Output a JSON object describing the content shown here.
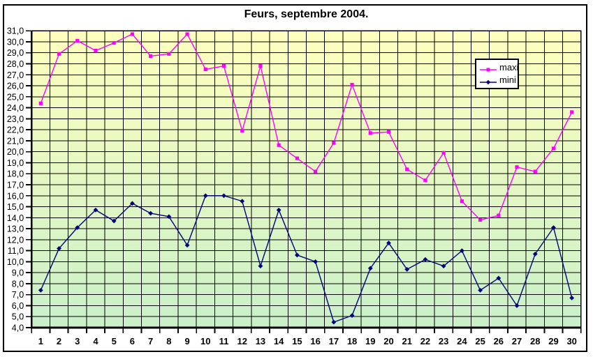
{
  "chart_data": {
    "type": "line",
    "title": "Feurs, septembre 2004.",
    "xlabel": "",
    "ylabel": "",
    "ylim": [
      4,
      31
    ],
    "y_tick_step": 1,
    "grid": true,
    "legend_position": "inside-top-right",
    "plot_background": {
      "top_color": "#FFFFBE",
      "bottom_color": "#C9F0C9"
    },
    "grid_color": "#000000",
    "categories": [
      "1",
      "2",
      "3",
      "4",
      "5",
      "6",
      "7",
      "8",
      "9",
      "10",
      "11",
      "12",
      "13",
      "14",
      "15",
      "16",
      "17",
      "18",
      "19",
      "20",
      "21",
      "22",
      "23",
      "24",
      "25",
      "26",
      "27",
      "28",
      "29",
      "30"
    ],
    "y_tick_labels": [
      "31,0",
      "30,0",
      "29,0",
      "28,0",
      "27,0",
      "26,0",
      "25,0",
      "24,0",
      "23,0",
      "22,0",
      "21,0",
      "20,0",
      "19,0",
      "18,0",
      "17,0",
      "16,0",
      "15,0",
      "14,0",
      "13,0",
      "12,0",
      "11,0",
      "10,0",
      "9,0",
      "8,0",
      "7,0",
      "6,0",
      "5,0",
      "4,0"
    ],
    "series": [
      {
        "name": "maxi",
        "color": "#FF00FF",
        "marker": "square",
        "values": [
          24.4,
          28.9,
          30.1,
          29.2,
          29.9,
          30.7,
          28.7,
          28.9,
          30.7,
          27.5,
          27.8,
          21.9,
          27.8,
          20.6,
          19.4,
          18.2,
          20.8,
          26.1,
          21.7,
          21.8,
          18.4,
          17.4,
          19.9,
          15.5,
          13.8,
          14.2,
          18.6,
          18.2,
          20.3,
          23.6
        ]
      },
      {
        "name": "mini",
        "color": "#000080",
        "marker": "diamond",
        "values": [
          7.4,
          11.2,
          13.1,
          14.7,
          13.7,
          15.3,
          14.4,
          14.1,
          11.5,
          16.0,
          16.0,
          15.5,
          9.6,
          14.7,
          10.6,
          10.0,
          4.5,
          5.1,
          9.4,
          11.7,
          9.3,
          10.2,
          9.6,
          11.0,
          7.4,
          8.5,
          6.0,
          10.7,
          13.1,
          6.7
        ]
      }
    ]
  }
}
